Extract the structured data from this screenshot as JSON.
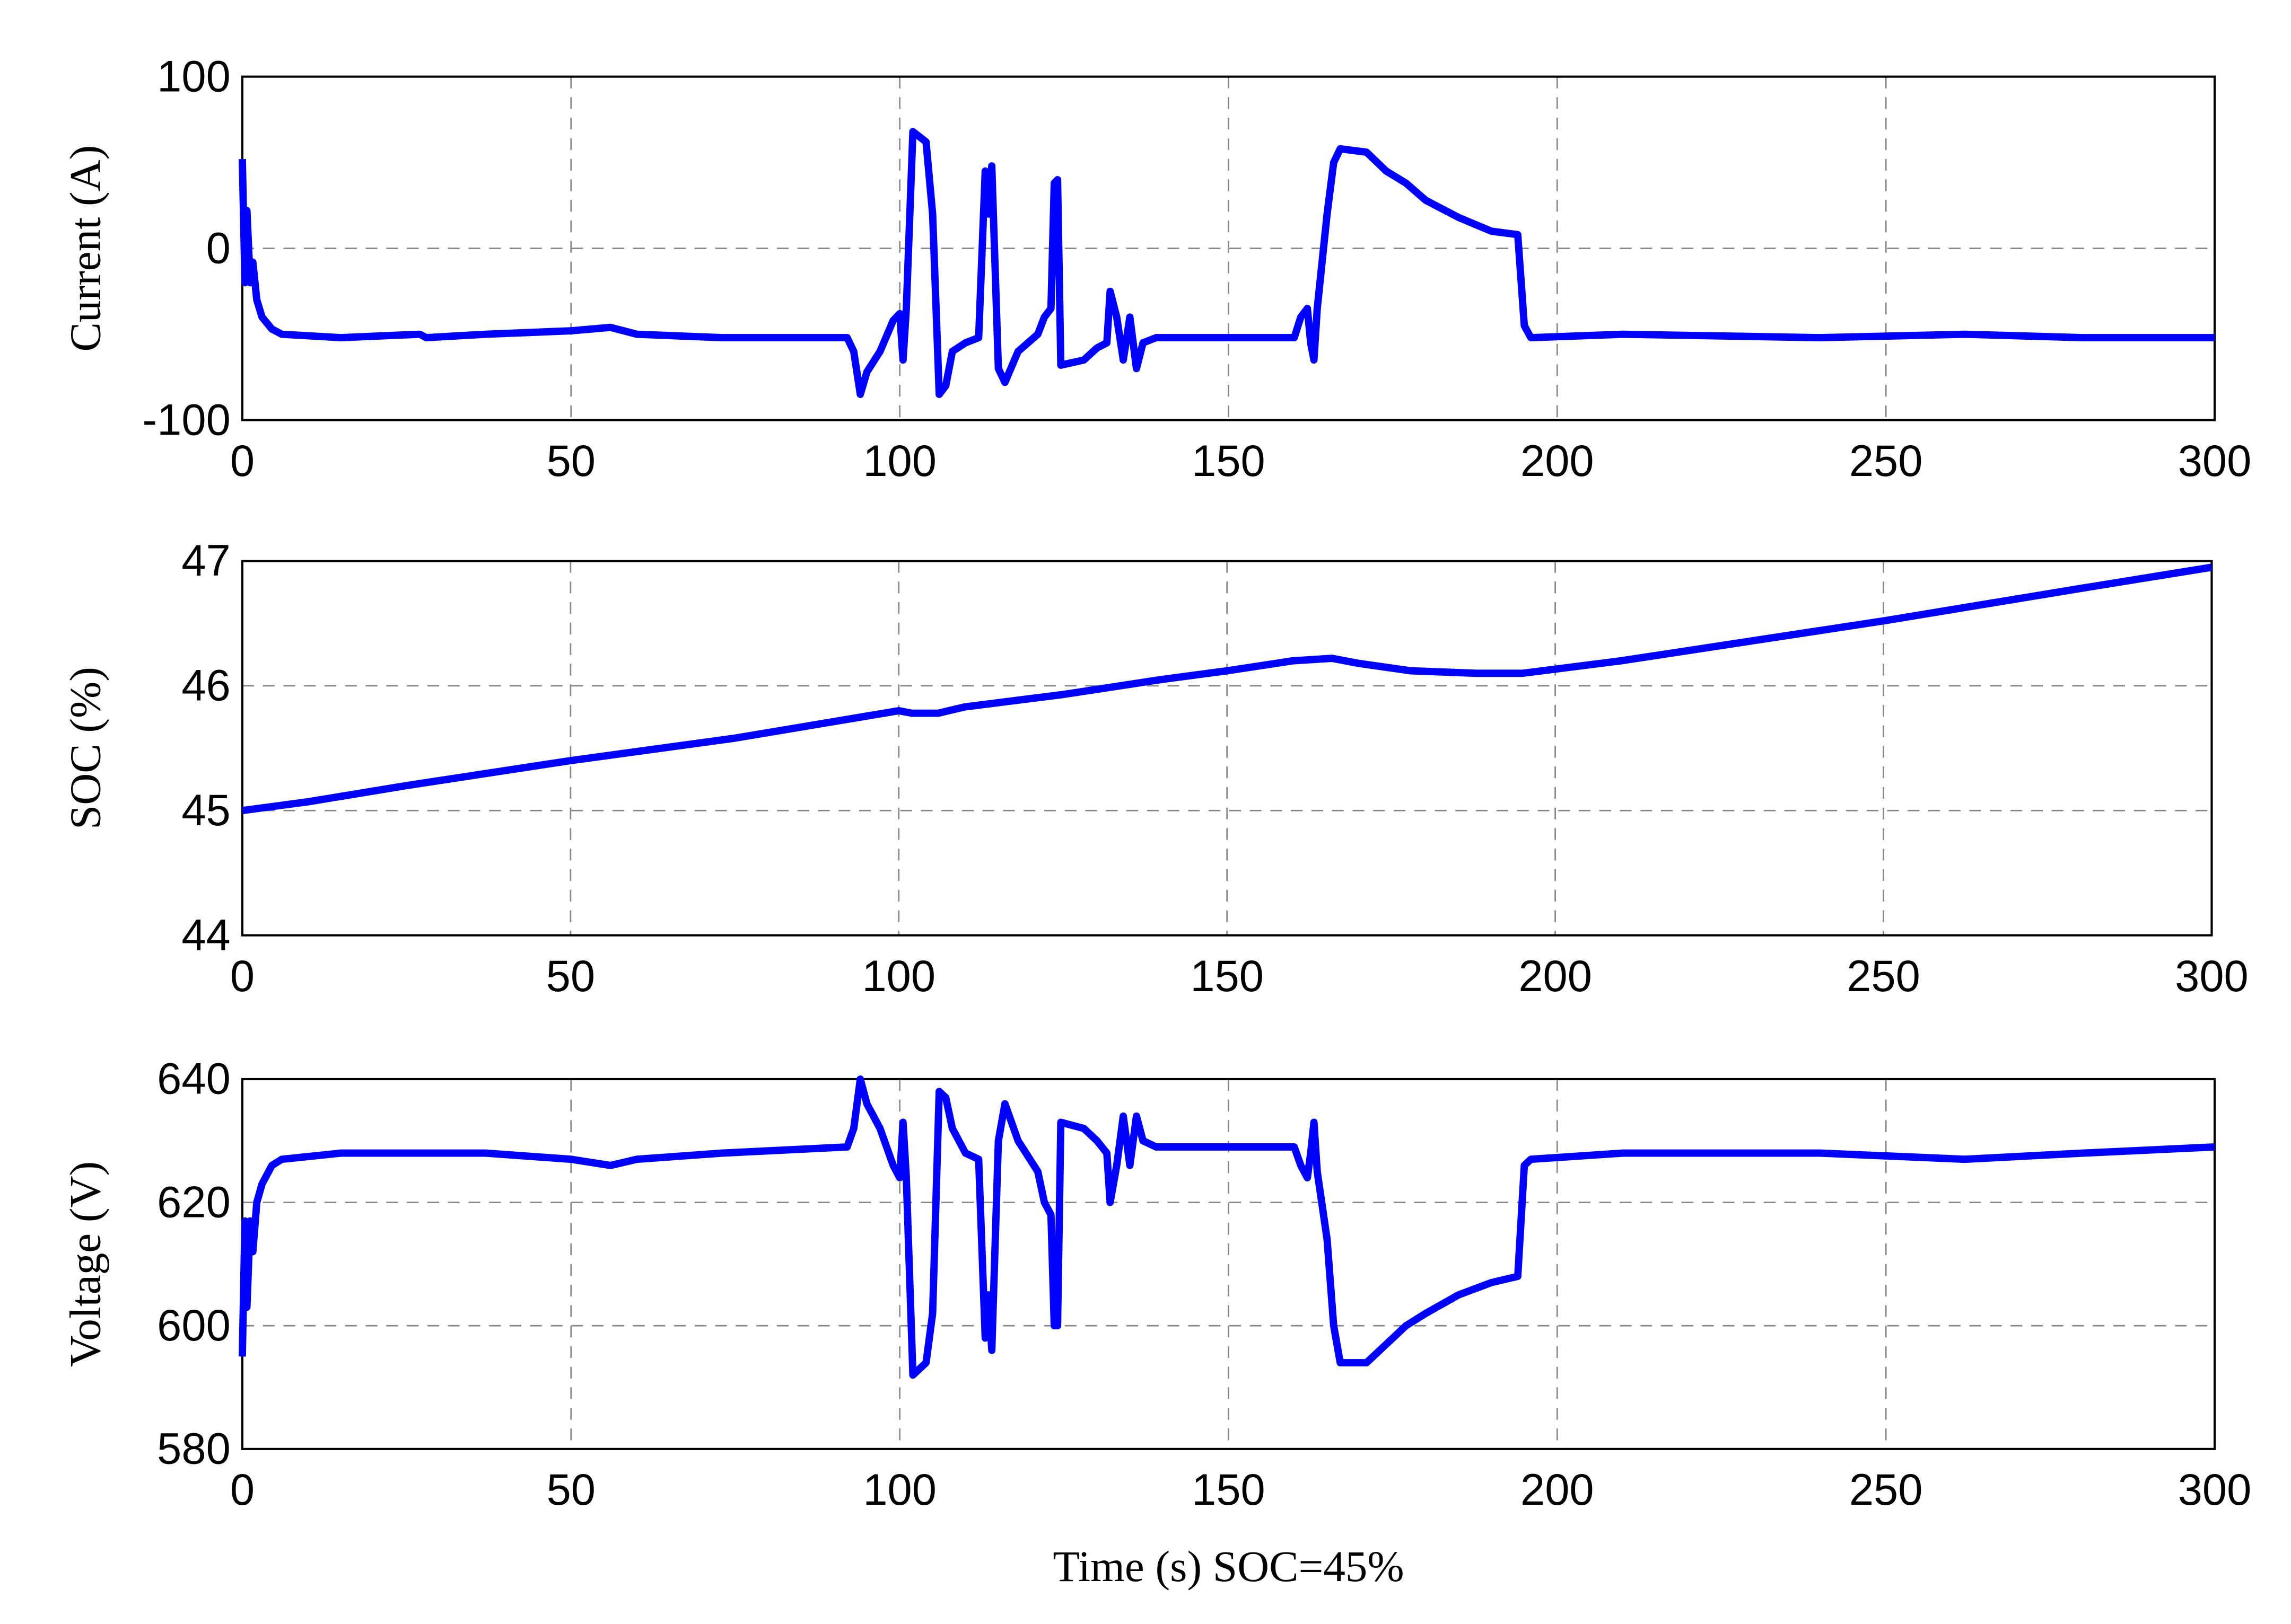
{
  "chart_data": [
    {
      "type": "line",
      "y_label": "Current (A)",
      "xlim": [
        0,
        300
      ],
      "xticks": [
        0,
        50,
        100,
        150,
        200,
        250,
        300
      ],
      "ylim": [
        -100,
        100
      ],
      "yticks": [
        -100,
        0,
        100
      ],
      "grid": true,
      "series": [
        {
          "color": "#0000ff",
          "x": [
            0,
            0.4,
            0.7,
            1.2,
            1.6,
            2.2,
            3,
            4.5,
            6,
            15,
            27,
            28,
            37,
            50,
            56,
            60,
            73,
            92,
            93,
            94,
            95,
            97,
            99,
            100,
            100.5,
            101,
            102,
            104,
            105,
            106,
            107,
            108,
            110,
            112,
            113,
            113.5,
            114,
            115,
            116,
            118,
            121,
            122,
            123,
            123.5,
            124,
            124.5,
            128,
            130,
            131.5,
            132,
            133,
            134,
            135,
            136,
            137,
            139,
            160,
            161,
            162,
            162.5,
            163,
            163.5,
            165,
            166,
            167,
            171,
            174,
            177,
            180,
            185,
            190,
            194,
            195,
            196,
            210,
            240,
            262,
            280,
            300
          ],
          "values": [
            52,
            -20,
            22,
            -20,
            -8,
            -30,
            -40,
            -47,
            -50,
            -52,
            -50,
            -52,
            -50,
            -48,
            -46,
            -50,
            -52,
            -52,
            -60,
            -85,
            -72,
            -60,
            -42,
            -38,
            -65,
            -35,
            68,
            62,
            20,
            -85,
            -80,
            -60,
            -55,
            -52,
            45,
            20,
            48,
            -70,
            -78,
            -60,
            -50,
            -40,
            -35,
            38,
            40,
            -68,
            -65,
            -58,
            -55,
            -25,
            -40,
            -65,
            -40,
            -70,
            -55,
            -52,
            -52,
            -40,
            -35,
            -55,
            -65,
            -35,
            20,
            50,
            58,
            56,
            45,
            38,
            28,
            18,
            10,
            8,
            -45,
            -52,
            -50,
            -52,
            -50,
            -52,
            -52
          ]
        }
      ]
    },
    {
      "type": "line",
      "y_label": "SOC  (%)",
      "xlim": [
        0,
        300
      ],
      "xticks": [
        0,
        50,
        100,
        150,
        200,
        250,
        300
      ],
      "ylim": [
        44,
        47
      ],
      "yticks": [
        44,
        45,
        46,
        47
      ],
      "grid": true,
      "series": [
        {
          "color": "#0000ff",
          "x": [
            0,
            10,
            25,
            50,
            75,
            100,
            102,
            106,
            110,
            125,
            140,
            150,
            160,
            166,
            170,
            178,
            188,
            195,
            210,
            250,
            280,
            300
          ],
          "values": [
            45.0,
            45.07,
            45.2,
            45.4,
            45.58,
            45.8,
            45.78,
            45.78,
            45.83,
            45.93,
            46.05,
            46.12,
            46.2,
            46.22,
            46.18,
            46.12,
            46.1,
            46.1,
            46.2,
            46.52,
            46.78,
            46.95
          ]
        }
      ]
    },
    {
      "type": "line",
      "y_label": "Voltage (V)",
      "x_label": "Time (s)  SOC=45%",
      "xlim": [
        0,
        300
      ],
      "xticks": [
        0,
        50,
        100,
        150,
        200,
        250,
        300
      ],
      "ylim": [
        580,
        640
      ],
      "yticks": [
        580,
        600,
        620,
        640
      ],
      "grid": true,
      "series": [
        {
          "color": "#0000ff",
          "x": [
            0,
            0.4,
            0.7,
            1.2,
            1.6,
            2.2,
            3,
            4.5,
            6,
            15,
            27,
            28,
            37,
            50,
            56,
            60,
            73,
            92,
            93,
            94,
            95,
            97,
            99,
            100,
            100.5,
            101,
            102,
            104,
            105,
            106,
            107,
            108,
            110,
            112,
            113,
            113.5,
            114,
            115,
            116,
            118,
            121,
            122,
            123,
            123.5,
            124,
            124.5,
            128,
            130,
            131.5,
            132,
            133,
            134,
            135,
            136,
            137,
            139,
            160,
            161,
            162,
            162.5,
            163,
            163.5,
            165,
            166,
            167,
            171,
            174,
            177,
            180,
            185,
            190,
            194,
            195,
            196,
            210,
            240,
            262,
            280,
            300
          ],
          "values": [
            595,
            617,
            603,
            617,
            612,
            620,
            623,
            626,
            627,
            628,
            628,
            628,
            628,
            627,
            626,
            627,
            628,
            629,
            632,
            640,
            636,
            632,
            626,
            624,
            633,
            624,
            592,
            594,
            602,
            638,
            637,
            632,
            628,
            627,
            598,
            605,
            596,
            630,
            636,
            630,
            625,
            620,
            618,
            600,
            600,
            633,
            632,
            630,
            628,
            620,
            626,
            634,
            626,
            634,
            630,
            629,
            629,
            626,
            624,
            628,
            633,
            625,
            614,
            600,
            594,
            594,
            597,
            600,
            602,
            605,
            607,
            608,
            626,
            627,
            628,
            628,
            627,
            628,
            629
          ]
        }
      ]
    }
  ]
}
